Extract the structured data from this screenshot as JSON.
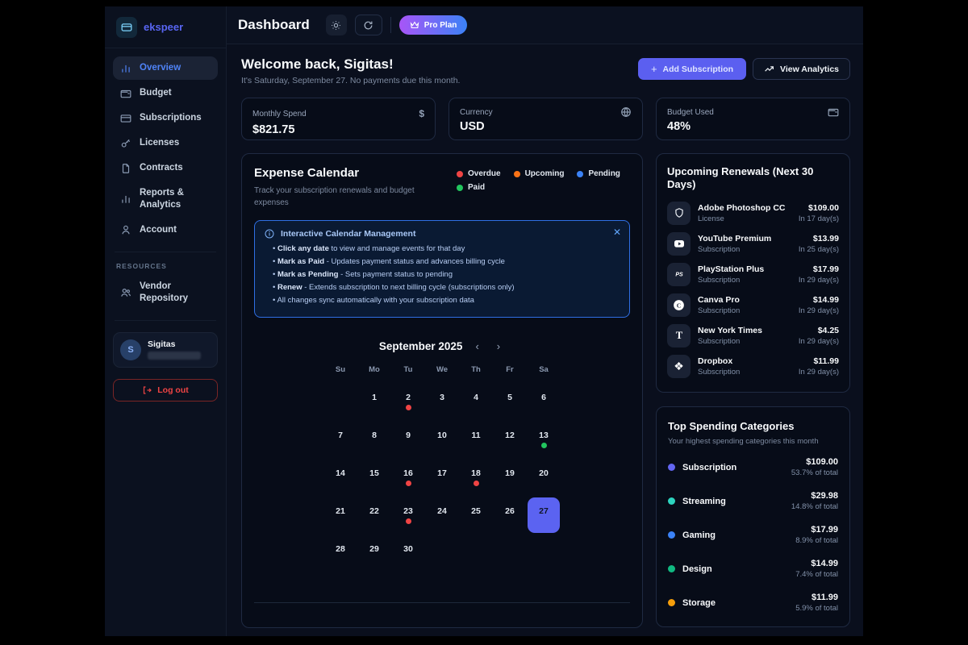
{
  "brand": {
    "name": "ekspeer"
  },
  "sidebar": {
    "items": [
      {
        "label": "Overview",
        "icon": "bar-chart",
        "active": true
      },
      {
        "label": "Budget",
        "icon": "wallet",
        "active": false
      },
      {
        "label": "Subscriptions",
        "icon": "credit-card",
        "active": false
      },
      {
        "label": "Licenses",
        "icon": "key",
        "active": false
      },
      {
        "label": "Contracts",
        "icon": "file",
        "active": false
      },
      {
        "label": "Reports & Analytics",
        "icon": "bar-chart",
        "active": false
      },
      {
        "label": "Account",
        "icon": "user",
        "active": false
      }
    ],
    "resources_label": "RESOURCES",
    "resources_items": [
      {
        "label": "Vendor Repository",
        "icon": "users"
      }
    ],
    "user": {
      "initial": "S",
      "name": "Sigitas"
    },
    "logout_label": "Log out"
  },
  "header": {
    "title": "Dashboard",
    "plan_label": "Pro Plan"
  },
  "welcome": {
    "title": "Welcome back, Sigitas!",
    "subtitle": "It's Saturday, September 27. No payments due this month.",
    "add_button": "Add Subscription",
    "analytics_button": "View Analytics"
  },
  "stats": [
    {
      "label": "Monthly Spend",
      "value": "$821.75",
      "icon": "dollar"
    },
    {
      "label": "Currency",
      "value": "USD",
      "icon": "globe"
    },
    {
      "label": "Budget Used",
      "value": "48%",
      "icon": "wallet"
    }
  ],
  "calendar": {
    "title": "Expense Calendar",
    "subtitle": "Track your subscription renewals and budget expenses",
    "legend": [
      {
        "label": "Overdue",
        "color": "#ef4444"
      },
      {
        "label": "Upcoming",
        "color": "#f97316"
      },
      {
        "label": "Pending",
        "color": "#3b82f6"
      },
      {
        "label": "Paid",
        "color": "#22c55e"
      }
    ],
    "info": {
      "title": "Interactive Calendar Management",
      "bullets": [
        {
          "bold": "Click any date",
          "text": " to view and manage events for that day"
        },
        {
          "bold": "Mark as Paid",
          "text": " - Updates payment status and advances billing cycle"
        },
        {
          "bold": "Mark as Pending",
          "text": " - Sets payment status to pending"
        },
        {
          "bold": "Renew",
          "text": " - Extends subscription to next billing cycle (subscriptions only)"
        },
        {
          "bold": "",
          "text": "All changes sync automatically with your subscription data"
        }
      ]
    },
    "month_label": "September 2025",
    "prev_label": "‹",
    "next_label": "›",
    "weekdays": [
      "Su",
      "Mo",
      "Tu",
      "We",
      "Th",
      "Fr",
      "Sa"
    ],
    "first_day_offset": 1,
    "num_days": 30,
    "selected_day": 27,
    "events": {
      "2": "overdue",
      "13": "paid",
      "16": "overdue",
      "18": "overdue",
      "23": "overdue"
    },
    "event_colors": {
      "overdue": "#ef4444",
      "upcoming": "#f97316",
      "pending": "#3b82f6",
      "paid": "#22c55e"
    }
  },
  "renewals": {
    "title": "Upcoming Renewals (Next 30 Days)",
    "items": [
      {
        "name": "Adobe Photoshop CC",
        "type": "License",
        "price": "$109.00",
        "due": "In 17 day(s)",
        "icon": "shield"
      },
      {
        "name": "YouTube Premium",
        "type": "Subscription",
        "price": "$13.99",
        "due": "In 25 day(s)",
        "icon": "youtube"
      },
      {
        "name": "PlayStation Plus",
        "type": "Subscription",
        "price": "$17.99",
        "due": "In 29 day(s)",
        "icon": "playstation"
      },
      {
        "name": "Canva Pro",
        "type": "Subscription",
        "price": "$14.99",
        "due": "In 29 day(s)",
        "icon": "canva"
      },
      {
        "name": "New York Times",
        "type": "Subscription",
        "price": "$4.25",
        "due": "In 29 day(s)",
        "icon": "nyt"
      },
      {
        "name": "Dropbox",
        "type": "Subscription",
        "price": "$11.99",
        "due": "In 29 day(s)",
        "icon": "dropbox"
      }
    ]
  },
  "categories": {
    "title": "Top Spending Categories",
    "subtitle": "Your highest spending categories this month",
    "items": [
      {
        "label": "Subscription",
        "amount": "$109.00",
        "percent": "53.7% of total",
        "color": "#6366f1"
      },
      {
        "label": "Streaming",
        "amount": "$29.98",
        "percent": "14.8% of total",
        "color": "#2dd4bf"
      },
      {
        "label": "Gaming",
        "amount": "$17.99",
        "percent": "8.9% of total",
        "color": "#3b82f6"
      },
      {
        "label": "Design",
        "amount": "$14.99",
        "percent": "7.4% of total",
        "color": "#10b981"
      },
      {
        "label": "Storage",
        "amount": "$11.99",
        "percent": "5.9% of total",
        "color": "#f59e0b"
      }
    ]
  }
}
